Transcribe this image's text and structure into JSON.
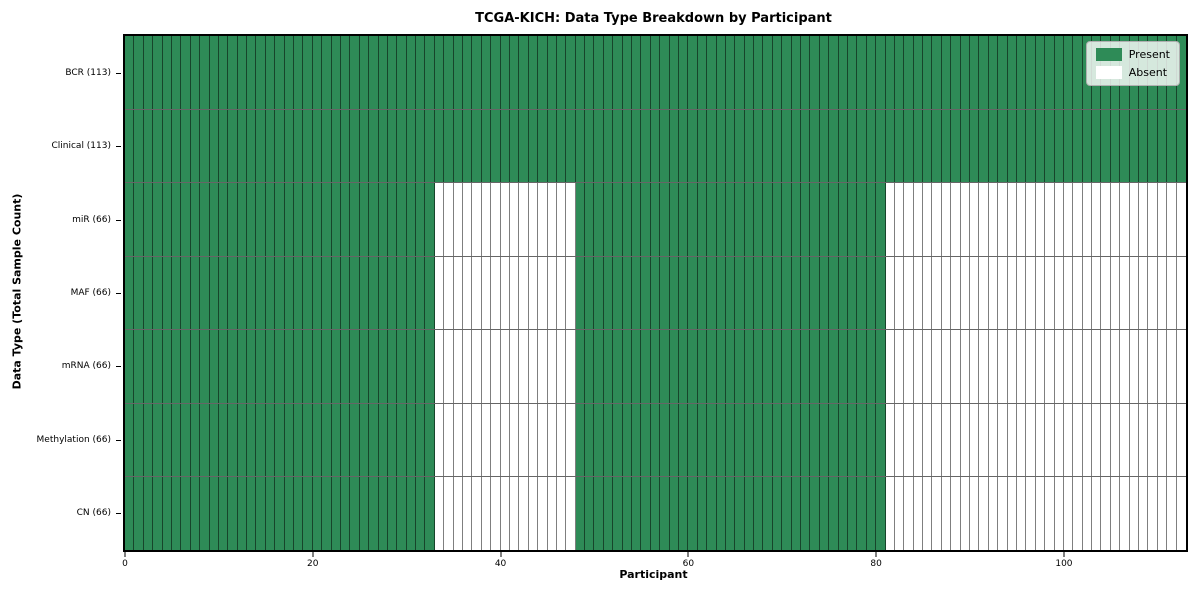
{
  "chart_data": {
    "type": "heatmap",
    "title": "TCGA-KICH: Data Type Breakdown by Participant",
    "xlabel": "Participant",
    "ylabel": "Data Type (Total Sample Count)",
    "n_participants": 113,
    "xlim": [
      0,
      113
    ],
    "x_ticks": [
      0,
      20,
      40,
      60,
      80,
      100
    ],
    "grid": false,
    "legend_position": "upper right",
    "present_color": "#2e8b57",
    "absent_color": "#ffffff",
    "cell_edge_color": "rgba(0,0,0,0.5)",
    "legend": [
      {
        "label": "Present",
        "color": "#2e8b57"
      },
      {
        "label": "Absent",
        "color": "#ffffff"
      }
    ],
    "rows": [
      {
        "label": "BCR (113)",
        "data_type": "BCR",
        "total_samples": 113,
        "present_ranges": [
          [
            0,
            113
          ]
        ]
      },
      {
        "label": "Clinical (113)",
        "data_type": "Clinical",
        "total_samples": 113,
        "present_ranges": [
          [
            0,
            113
          ]
        ]
      },
      {
        "label": "miR (66)",
        "data_type": "miR",
        "total_samples": 66,
        "present_ranges": [
          [
            0,
            33
          ],
          [
            48,
            81
          ]
        ]
      },
      {
        "label": "MAF (66)",
        "data_type": "MAF",
        "total_samples": 66,
        "present_ranges": [
          [
            0,
            33
          ],
          [
            48,
            81
          ]
        ]
      },
      {
        "label": "mRNA (66)",
        "data_type": "mRNA",
        "total_samples": 66,
        "present_ranges": [
          [
            0,
            33
          ],
          [
            48,
            81
          ]
        ]
      },
      {
        "label": "Methylation (66)",
        "data_type": "Methylation",
        "total_samples": 66,
        "present_ranges": [
          [
            0,
            33
          ],
          [
            48,
            81
          ]
        ]
      },
      {
        "label": "CN (66)",
        "data_type": "CN",
        "total_samples": 66,
        "present_ranges": [
          [
            0,
            33
          ],
          [
            48,
            81
          ]
        ]
      }
    ]
  }
}
